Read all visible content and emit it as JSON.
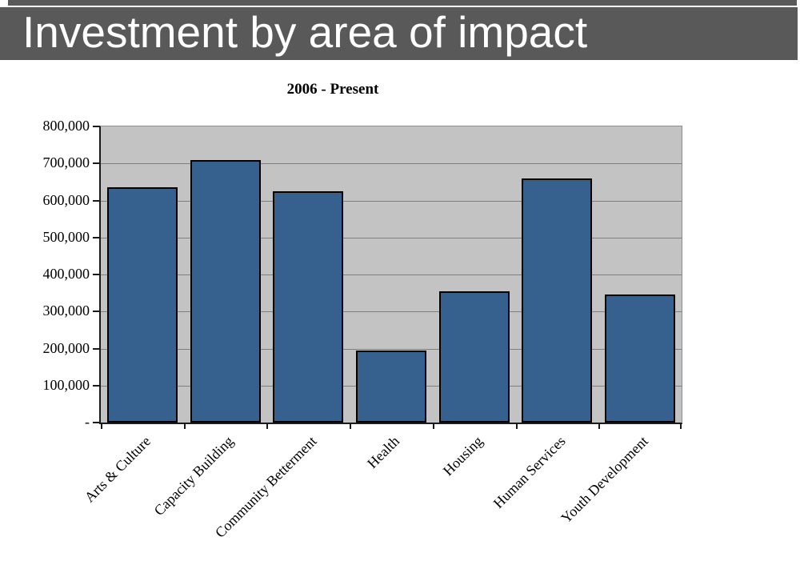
{
  "header": {
    "title": "Investment by area of impact"
  },
  "colors": {
    "header_bg": "#595959",
    "header_text": "#ffffff",
    "plot_bg": "#c3c3c3",
    "gridline": "#7f7f7f",
    "axis": "#1a1a1a",
    "bar_fill": "#36618f",
    "bar_border": "#000000"
  },
  "chart_data": {
    "type": "bar",
    "title": "2006 - Present",
    "categories": [
      "Arts & Culture",
      "Capacity Building",
      "Community Betterment",
      "Health",
      "Housing",
      "Human Services",
      "Youth Development"
    ],
    "values": [
      635000,
      710000,
      625000,
      195000,
      355000,
      660000,
      345000
    ],
    "xlabel": "",
    "ylabel": "",
    "ylim": [
      0,
      800000
    ],
    "y_tick_step": 100000,
    "y_tick_labels_top_to_bottom": [
      "800,000",
      "700,000",
      "600,000",
      "500,000",
      "400,000",
      "300,000",
      "200,000",
      "100,000",
      "-"
    ],
    "grid": true,
    "legend": false,
    "bar_orientation": "vertical",
    "x_label_rotation_deg": 45
  }
}
